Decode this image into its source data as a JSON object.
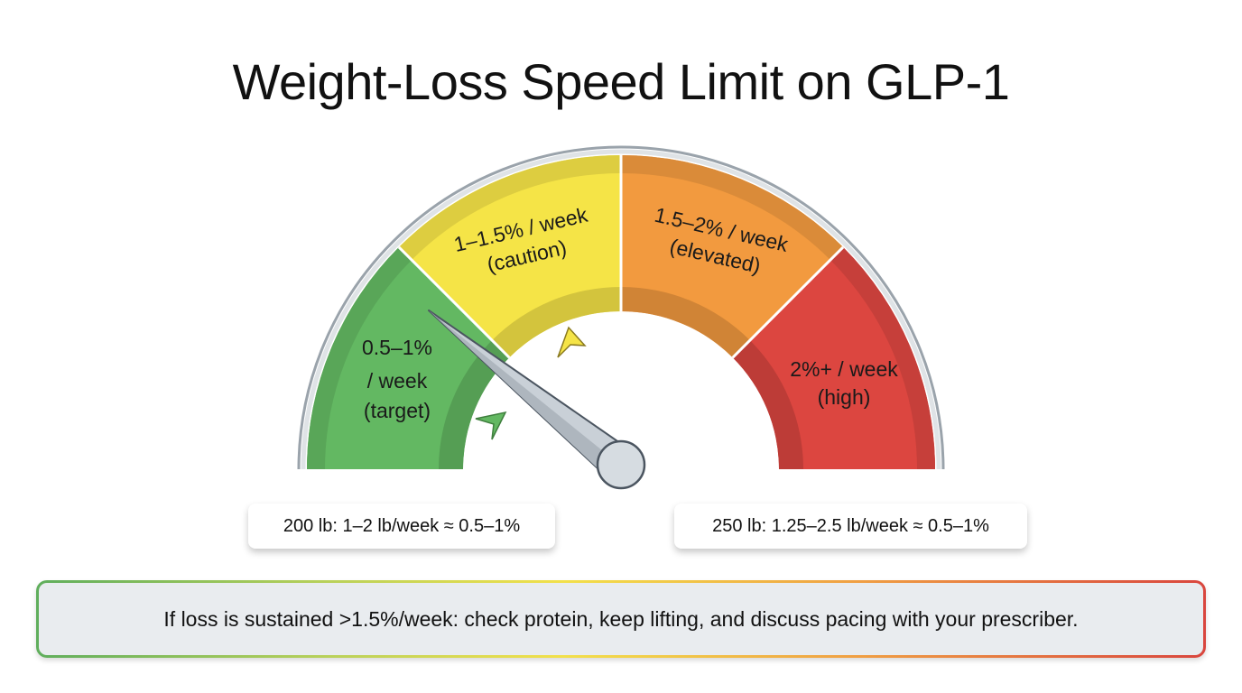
{
  "title": "Weight-Loss Speed Limit on GLP-1",
  "gauge": {
    "segments": [
      {
        "line1": "0.5–1%",
        "line2": "/ week",
        "line3": "(target)",
        "color": "#63b862",
        "range_pct_per_week": [
          0.5,
          1
        ]
      },
      {
        "line1": "1–1.5% / week",
        "line2": "(caution)",
        "color": "#f5e447",
        "range_pct_per_week": [
          1,
          1.5
        ]
      },
      {
        "line1": "1.5–2% / week",
        "line2": "(elevated)",
        "color": "#f29a3f",
        "range_pct_per_week": [
          1.5,
          2
        ]
      },
      {
        "line1": "2%+ / week",
        "line2": "(high)",
        "color": "#dc4640",
        "range_pct_per_week": [
          2,
          null
        ]
      }
    ],
    "needle_segment": "target"
  },
  "notes": {
    "left": "200 lb: 1–2 lb/week ≈ 0.5–1%",
    "right": "250 lb: 1.25–2.5 lb/week ≈ 0.5–1%"
  },
  "banner": "If loss is sustained >1.5%/week: check protein, keep lifting, and discuss pacing with your prescriber."
}
